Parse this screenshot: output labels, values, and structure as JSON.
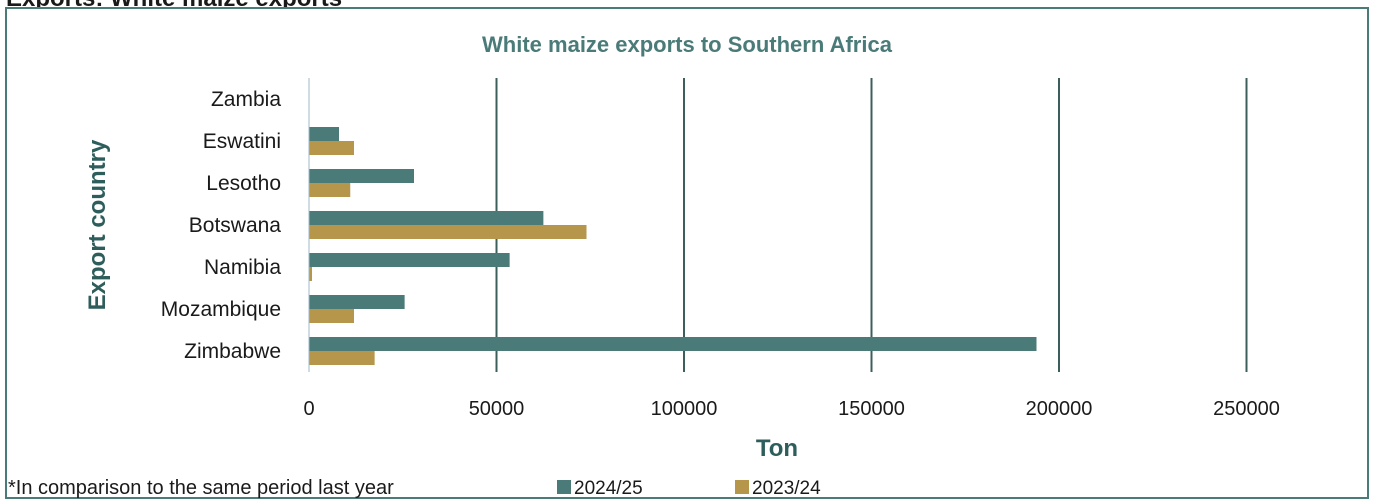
{
  "page": {
    "heading": "Exports: White maize exports"
  },
  "footnote": "*In comparison to the same period last year",
  "colors": {
    "series_2024_25": "#4a7b78",
    "series_2023_24": "#b5964a",
    "gridline": "#3d5f5c",
    "frame": "#4a7b78",
    "title": "#4a7b78"
  },
  "chart_data": {
    "type": "bar",
    "orientation": "horizontal",
    "title": "White maize exports to Southern Africa",
    "xlabel": "Ton",
    "ylabel": "Export country",
    "categories": [
      "Zambia",
      "Eswatini",
      "Lesotho",
      "Botswana",
      "Namibia",
      "Mozambique",
      "Zimbabwe"
    ],
    "series": [
      {
        "name": "2024/25",
        "values": [
          0,
          8000,
          28000,
          62500,
          53500,
          25500,
          194000
        ]
      },
      {
        "name": "2023/24",
        "values": [
          0,
          12000,
          11000,
          74000,
          800,
          12000,
          17500
        ]
      }
    ],
    "xlim": [
      0,
      275000
    ],
    "xticks": [
      "0",
      "50000",
      "100000",
      "150000",
      "200000",
      "250000"
    ],
    "xtick_values": [
      0,
      50000,
      100000,
      150000,
      200000,
      250000
    ],
    "grid": "vertical",
    "legend_position": "bottom"
  }
}
